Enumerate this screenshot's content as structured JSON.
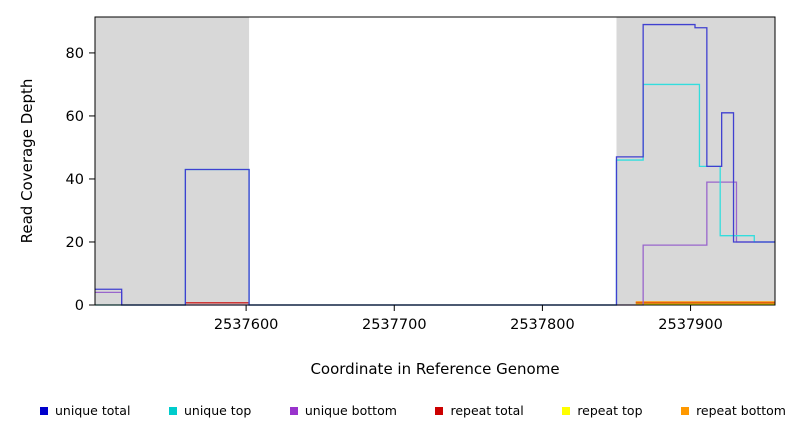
{
  "chart_data": {
    "type": "line",
    "title": "",
    "xlabel": "Coordinate in Reference Genome",
    "ylabel": "Read Coverage Depth",
    "x_ticks": [
      2537600,
      2537700,
      2537800,
      2537900
    ],
    "y_ticks": [
      0,
      20,
      40,
      60,
      80
    ],
    "xlim": [
      2537498,
      2537957
    ],
    "ylim": [
      0,
      91.4
    ],
    "grid": false,
    "highlight_color": "#d8d8d8",
    "highlight_regions": [
      [
        2537498,
        2537602
      ],
      [
        2537850,
        2537957
      ]
    ],
    "series": [
      {
        "name": "repeat top",
        "color": "#eeee00",
        "segments": [
          [
            [
              2537863,
              0.3
            ],
            [
              2537957,
              0.3
            ]
          ]
        ]
      },
      {
        "name": "repeat total",
        "color": "#cc2222",
        "segments": [
          [
            [
              2537559,
              0.7
            ],
            [
              2537602,
              0.7
            ]
          ],
          [
            [
              2537863,
              0.7
            ],
            [
              2537957,
              0.7
            ]
          ]
        ]
      },
      {
        "name": "repeat bottom",
        "color": "#ff9900",
        "segments": [
          [
            [
              2537863,
              1
            ],
            [
              2537957,
              1
            ]
          ]
        ]
      },
      {
        "name": "unique bottom",
        "color": "#9966cc",
        "segments": [
          [
            [
              2537498,
              4
            ],
            [
              2537516,
              4
            ],
            [
              2537516,
              0
            ],
            [
              2537868,
              0
            ],
            [
              2537868,
              19
            ],
            [
              2537911,
              19
            ],
            [
              2537911,
              39
            ],
            [
              2537931,
              39
            ],
            [
              2537931,
              20
            ],
            [
              2537957,
              20
            ]
          ]
        ]
      },
      {
        "name": "unique top",
        "color": "#33dddd",
        "segments": [
          [
            [
              2537498,
              0
            ],
            [
              2537559,
              0
            ],
            [
              2537559,
              43
            ],
            [
              2537602,
              43
            ],
            [
              2537602,
              0
            ],
            [
              2537850,
              0
            ],
            [
              2537850,
              46
            ],
            [
              2537868,
              46
            ],
            [
              2537868,
              70
            ],
            [
              2537906,
              70
            ],
            [
              2537906,
              44
            ],
            [
              2537920,
              44
            ],
            [
              2537920,
              22
            ],
            [
              2537943,
              22
            ],
            [
              2537943,
              20
            ],
            [
              2537957,
              20
            ]
          ]
        ]
      },
      {
        "name": "unique total",
        "color": "#4040d0",
        "segments": [
          [
            [
              2537498,
              5
            ],
            [
              2537516,
              5
            ],
            [
              2537516,
              0
            ],
            [
              2537559,
              0
            ],
            [
              2537559,
              43
            ],
            [
              2537602,
              43
            ],
            [
              2537602,
              0
            ],
            [
              2537850,
              0
            ],
            [
              2537850,
              47
            ],
            [
              2537868,
              47
            ],
            [
              2537868,
              89
            ],
            [
              2537903,
              89
            ],
            [
              2537903,
              88
            ],
            [
              2537911,
              88
            ],
            [
              2537911,
              44
            ],
            [
              2537921,
              44
            ],
            [
              2537921,
              61
            ],
            [
              2537929,
              61
            ],
            [
              2537929,
              20
            ],
            [
              2537957,
              20
            ]
          ]
        ]
      }
    ],
    "legend": [
      {
        "label": "unique total",
        "color": "#0000cc"
      },
      {
        "label": "unique top",
        "color": "#00cccc"
      },
      {
        "label": "unique bottom",
        "color": "#9933cc"
      },
      {
        "label": "repeat total",
        "color": "#cc0000"
      },
      {
        "label": "repeat top",
        "color": "#ffff00"
      },
      {
        "label": "repeat bottom",
        "color": "#ff9900"
      }
    ]
  }
}
